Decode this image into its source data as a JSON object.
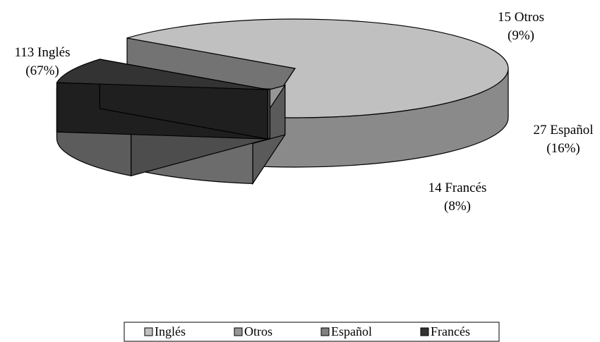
{
  "chart_data": {
    "type": "pie",
    "title": "",
    "categories": [
      "Inglés",
      "Otros",
      "Español",
      "Francés"
    ],
    "values": [
      113,
      15,
      27,
      14
    ],
    "percent_labels": [
      "(67%)",
      "(9%)",
      "(16%)",
      "(8%)"
    ],
    "value_labels": [
      "113 Inglés",
      "15 Otros",
      "27 Español",
      "14 Francés"
    ],
    "legend_position": "bottom",
    "colors": {
      "Inglés": "#c0c0c0",
      "Otros": "#969696",
      "Español": "#808080",
      "Francés": "#333333"
    },
    "three_d": true
  }
}
